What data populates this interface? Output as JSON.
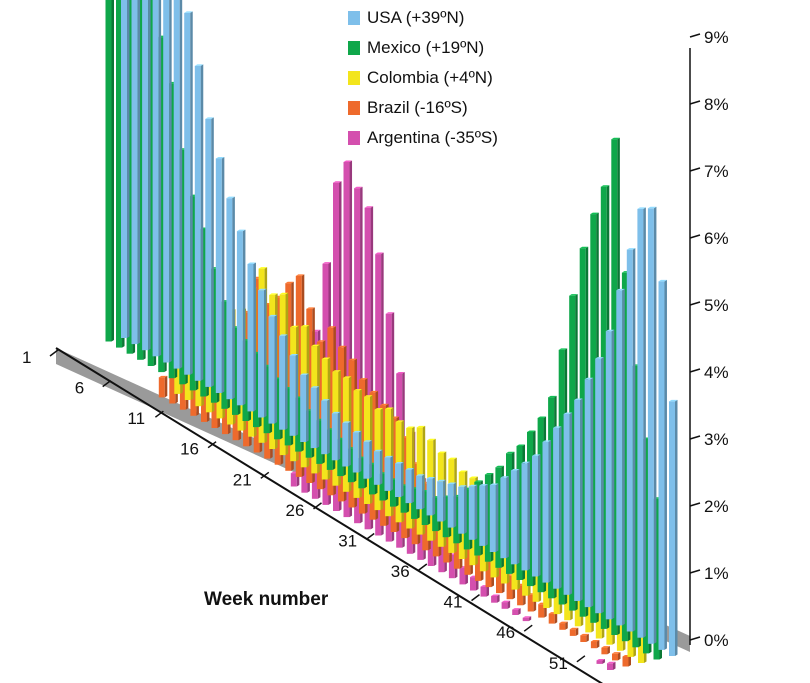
{
  "chart_data": {
    "type": "bar",
    "xlabel": "Week number",
    "ylabel": "",
    "ylim": [
      0,
      9
    ],
    "y_ticks": [
      "0%",
      "1%",
      "2%",
      "3%",
      "4%",
      "5%",
      "6%",
      "7%",
      "8%",
      "9%"
    ],
    "x_ticks": [
      "1",
      "6",
      "11",
      "16",
      "21",
      "26",
      "31",
      "36",
      "41",
      "46",
      "51"
    ],
    "x_tick_weeks": [
      1,
      6,
      11,
      16,
      21,
      26,
      31,
      36,
      41,
      46,
      51
    ],
    "legend_position": "top",
    "series": [
      {
        "name": "Argentina (-35ºS)",
        "color": "#d44fae",
        "values": [
          0,
          0,
          0,
          0,
          0,
          0,
          0,
          0,
          0,
          0,
          0,
          0,
          0,
          0,
          0,
          0,
          0,
          0,
          0,
          0,
          0,
          0,
          0.2,
          1.2,
          2.5,
          3.6,
          4.9,
          5.3,
          5.0,
          4.8,
          4.2,
          3.4,
          2.6,
          1.8,
          1.2,
          0.8,
          0.5,
          0.35,
          0.25,
          0.2,
          0.15,
          0.1,
          0.1,
          0.08,
          0.05,
          0,
          0,
          0,
          0,
          0,
          0,
          0.05,
          0.1
        ]
      },
      {
        "name": "Brazil (-16ºS)",
        "color": "#ee6a2c",
        "values": [
          0,
          0,
          0,
          0,
          0,
          0,
          0,
          0,
          0.3,
          0.8,
          1.2,
          0.8,
          0.6,
          0.7,
          1.0,
          1.4,
          2.0,
          2.6,
          2.3,
          2.5,
          2.8,
          3.0,
          2.6,
          2.2,
          2.5,
          2.3,
          2.2,
          2.0,
          1.9,
          1.8,
          1.7,
          1.5,
          1.2,
          1.0,
          0.8,
          0.7,
          0.6,
          0.55,
          0.5,
          0.45,
          0.4,
          0.35,
          0.3,
          0.25,
          0.2,
          0.15,
          0.1,
          0.1,
          0.1,
          0.1,
          0.1,
          0.1,
          0.15
        ]
      },
      {
        "name": "Colombia (+4ºN)",
        "color": "#f3e51c",
        "values": [
          0,
          0,
          0,
          0,
          0,
          0,
          0,
          0,
          0.4,
          0.6,
          0.9,
          1.3,
          1.6,
          1.7,
          1.8,
          2.2,
          2.6,
          2.3,
          2.4,
          2.0,
          2.1,
          1.9,
          1.8,
          1.7,
          1.7,
          1.6,
          1.6,
          1.5,
          1.6,
          1.5,
          1.5,
          1.6,
          1.5,
          1.4,
          1.4,
          1.3,
          1.3,
          1.2,
          1.2,
          1.1,
          1.1,
          1.0,
          0.9,
          0.9,
          0.8,
          0.7,
          0.6,
          0.5,
          0.5,
          0.5,
          0.6,
          0.6,
          0.7
        ]
      },
      {
        "name": "Mexico (+19ºN)",
        "color": "#0fa74a",
        "values": [
          8.5,
          7.4,
          6.7,
          6.2,
          5.6,
          5.0,
          4.4,
          3.5,
          2.9,
          2.5,
          2.0,
          1.6,
          1.3,
          1.2,
          1.1,
          1.0,
          0.9,
          0.85,
          0.8,
          0.7,
          0.65,
          0.6,
          0.55,
          0.5,
          0.45,
          0.45,
          0.4,
          0.4,
          0.4,
          0.45,
          0.5,
          0.5,
          0.6,
          0.7,
          0.9,
          1.1,
          1.3,
          1.5,
          1.8,
          2.0,
          2.3,
          2.6,
          3.0,
          3.8,
          4.7,
          5.5,
          6.1,
          6.6,
          7.4,
          5.5,
          4.2,
          3.2,
          2.4
        ]
      },
      {
        "name": "USA (+39ºN)",
        "color": "#7ebfea",
        "values": [
          7.7,
          7.3,
          7.0,
          6.8,
          6.4,
          6.0,
          5.4,
          4.7,
          4.0,
          3.5,
          3.0,
          2.6,
          2.2,
          1.9,
          1.6,
          1.4,
          1.2,
          1.0,
          0.9,
          0.8,
          0.7,
          0.65,
          0.6,
          0.55,
          0.5,
          0.5,
          0.5,
          0.5,
          0.5,
          0.55,
          0.6,
          0.65,
          0.7,
          0.8,
          0.9,
          1.0,
          1.2,
          1.4,
          1.6,
          1.8,
          2.1,
          2.4,
          2.7,
          3.0,
          3.4,
          3.8,
          4.3,
          5.0,
          5.7,
          6.4,
          6.5,
          5.5,
          3.8
        ]
      }
    ],
    "legend_order": [
      4,
      3,
      2,
      1,
      0
    ]
  }
}
